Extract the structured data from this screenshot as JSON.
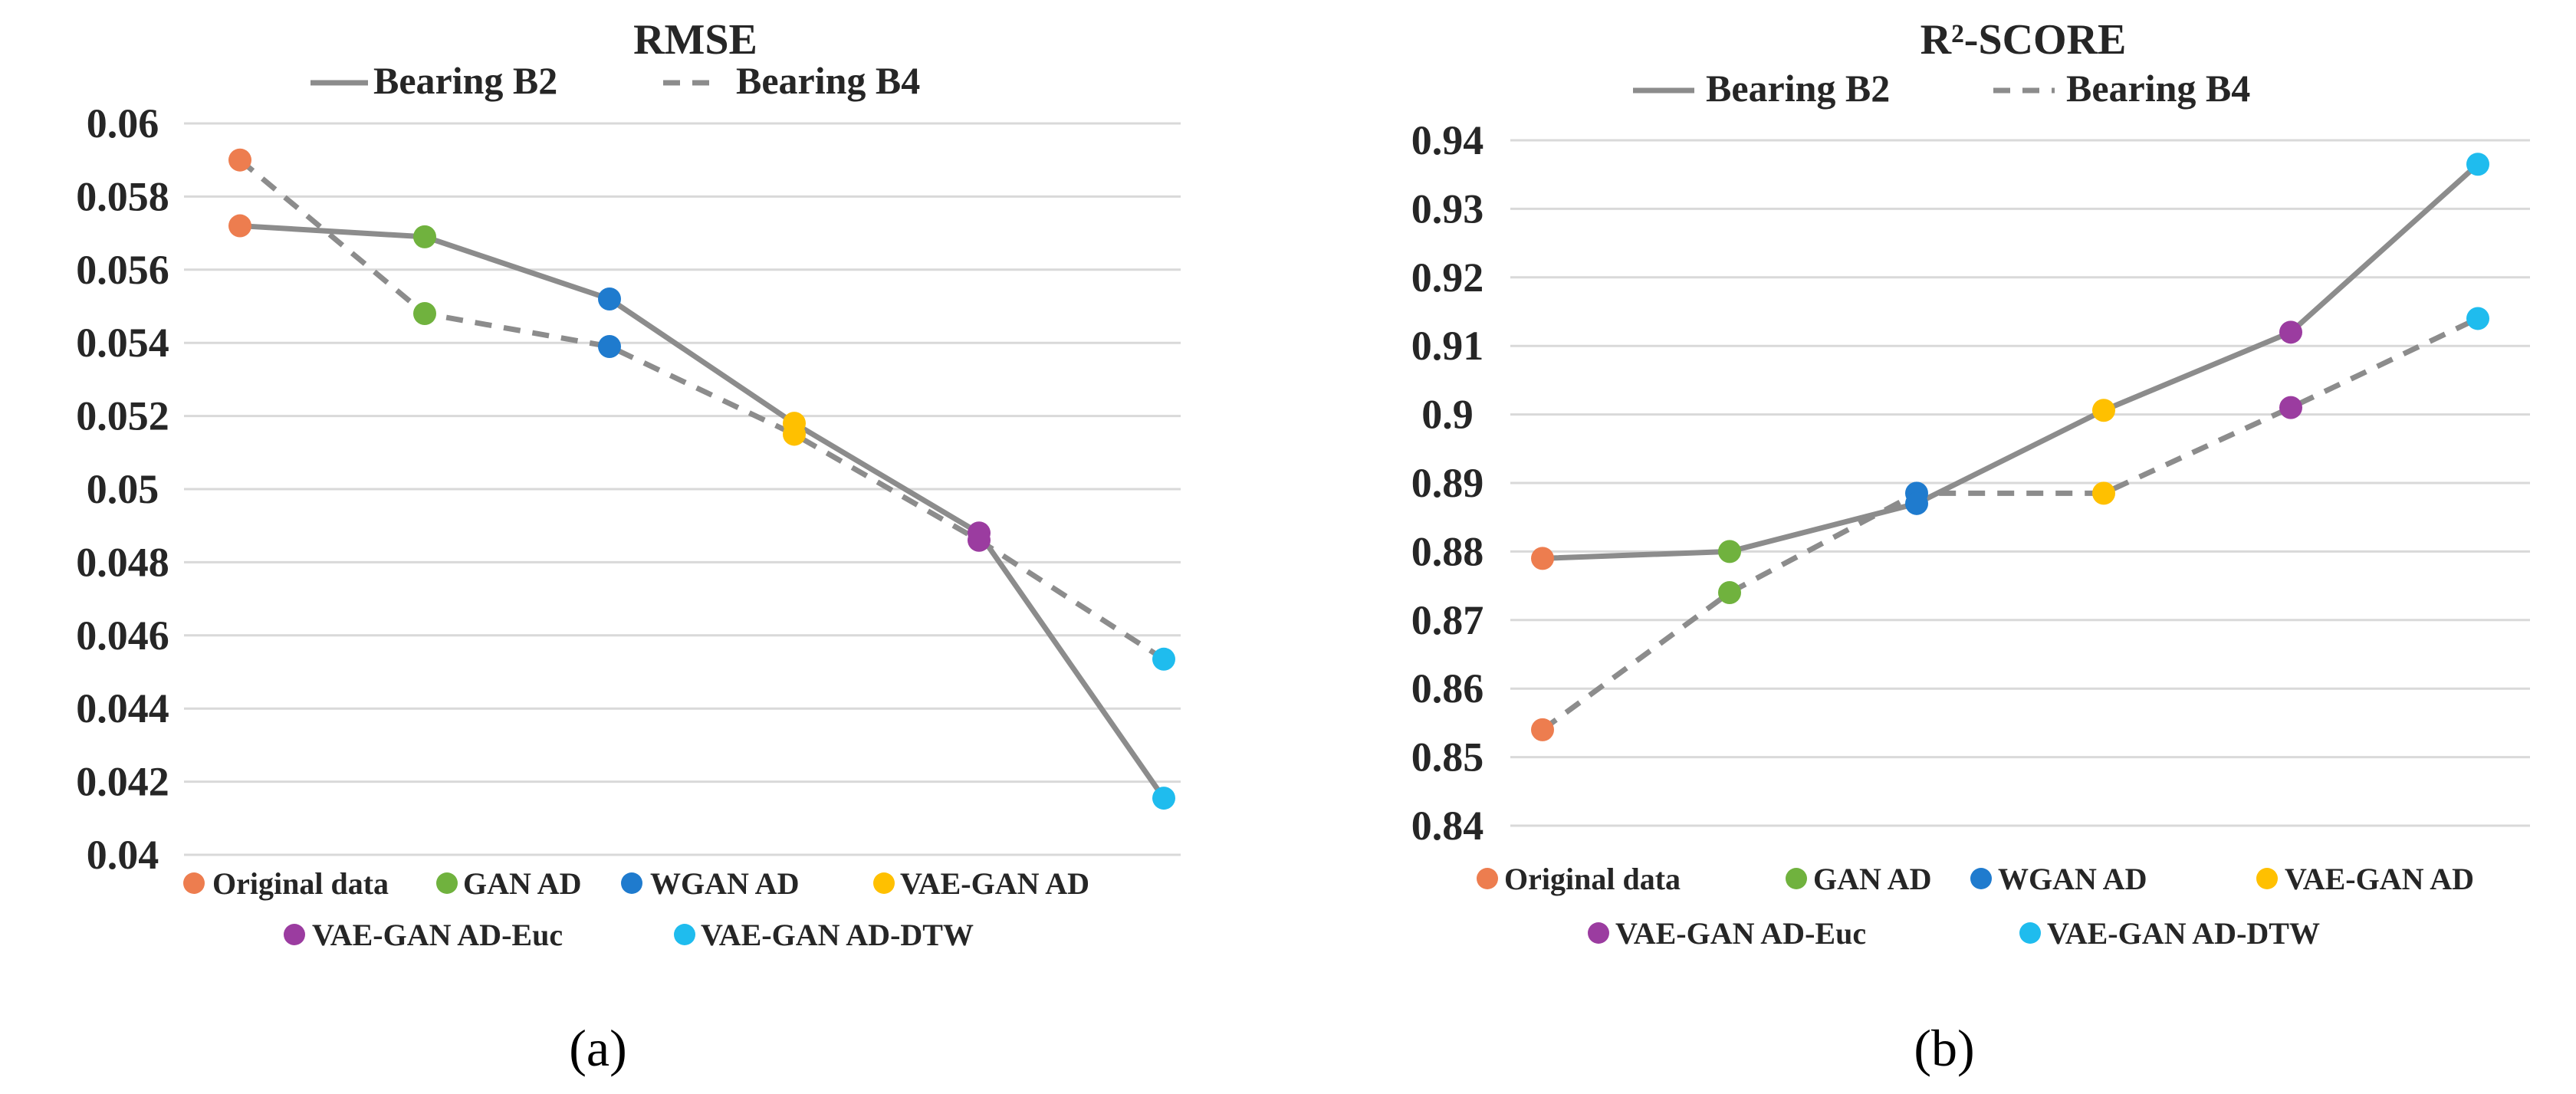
{
  "chart_data": [
    {
      "type": "line",
      "title": "RMSE",
      "panel_label": "(a)",
      "categories": [
        "Original data",
        "GAN AD",
        "WGAN AD",
        "VAE-GAN AD",
        "VAE-GAN AD-Euc",
        "VAE-GAN AD-DTW"
      ],
      "category_colors": [
        "#ed7d4f",
        "#70b23e",
        "#1f7bce",
        "#ffc000",
        "#9b3ca0",
        "#1fbcee"
      ],
      "series": [
        {
          "name": "Bearing B2",
          "style": "solid",
          "color": "#8c8c8c",
          "values": [
            0.0572,
            0.0569,
            0.0552,
            0.0518,
            0.0488,
            0.04155
          ]
        },
        {
          "name": "Bearing B4",
          "style": "dashed",
          "color": "#8c8c8c",
          "values": [
            0.059,
            0.0548,
            0.0539,
            0.0515,
            0.0486,
            0.04535
          ]
        }
      ],
      "yticks": [
        "0.04",
        "0.042",
        "0.044",
        "0.046",
        "0.048",
        "0.05",
        "0.052",
        "0.054",
        "0.056",
        "0.058",
        "0.06"
      ],
      "ylim": [
        0.04,
        0.06
      ],
      "xlabel": "",
      "ylabel": "",
      "grid": true,
      "legend": {
        "lines": "top",
        "points": "bottom"
      }
    },
    {
      "type": "line",
      "title": "R²-SCORE",
      "panel_label": "(b)",
      "categories": [
        "Original data",
        "GAN AD",
        "WGAN AD",
        "VAE-GAN AD",
        "VAE-GAN AD-Euc",
        "VAE-GAN AD-DTW"
      ],
      "category_colors": [
        "#ed7d4f",
        "#70b23e",
        "#1f7bce",
        "#ffc000",
        "#9b3ca0",
        "#1fbcee"
      ],
      "series": [
        {
          "name": "Bearing B2",
          "style": "solid",
          "color": "#8c8c8c",
          "values": [
            0.879,
            0.88,
            0.887,
            0.9006,
            0.912,
            0.9365
          ]
        },
        {
          "name": "Bearing B4",
          "style": "dashed",
          "color": "#8c8c8c",
          "values": [
            0.854,
            0.874,
            0.8885,
            0.8885,
            0.901,
            0.914
          ]
        }
      ],
      "yticks": [
        "0.84",
        "0.85",
        "0.86",
        "0.87",
        "0.88",
        "0.89",
        "0.9",
        "0.91",
        "0.92",
        "0.93",
        "0.94"
      ],
      "ylim": [
        0.84,
        0.94
      ],
      "xlabel": "",
      "ylabel": "",
      "grid": true,
      "legend": {
        "lines": "top",
        "points": "bottom"
      }
    }
  ]
}
